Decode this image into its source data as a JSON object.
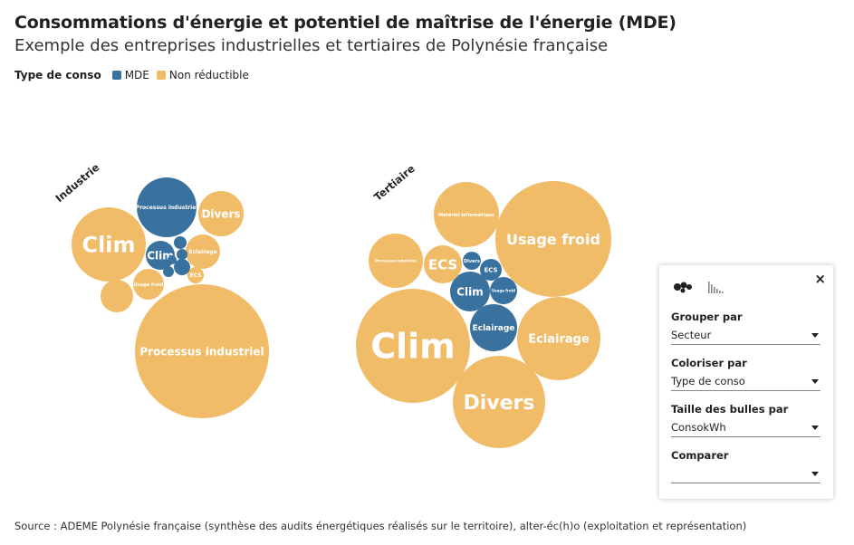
{
  "header": {
    "title": "Consommations d'énergie et potentiel de maîtrise de l'énergie (MDE)",
    "subtitle": "Exemple des entreprises industrielles et tertiaires de Polynésie française"
  },
  "legend": {
    "title": "Type de conso",
    "items": [
      {
        "label": "MDE",
        "color": "#3a729f"
      },
      {
        "label": "Non réductible",
        "color": "#f0bc68"
      }
    ]
  },
  "chart_data": {
    "type": "bubble",
    "color_by": "Type de conso",
    "size_by": "ConsokWh",
    "group_by": "Secteur",
    "groups": [
      {
        "name": "Industrie",
        "bubbles": [
          {
            "label": "Processus industriel",
            "type": "Non réductible"
          },
          {
            "label": "Clim",
            "type": "Non réductible"
          },
          {
            "label": "Processus industriel",
            "type": "MDE"
          },
          {
            "label": "Divers",
            "type": "Non réductible"
          },
          {
            "label": "Clim",
            "type": "MDE"
          },
          {
            "label": "Eclairage",
            "type": "Non réductible"
          },
          {
            "label": "Usage froid",
            "type": "Non réductible"
          },
          {
            "label": "",
            "type": "Non réductible"
          },
          {
            "label": "ECS",
            "type": "Non réductible"
          },
          {
            "label": "",
            "type": "MDE"
          },
          {
            "label": "",
            "type": "MDE"
          },
          {
            "label": "",
            "type": "MDE"
          },
          {
            "label": "",
            "type": "MDE"
          },
          {
            "label": "",
            "type": "MDE"
          }
        ]
      },
      {
        "name": "Tertiaire",
        "bubbles": [
          {
            "label": "Clim",
            "type": "Non réductible"
          },
          {
            "label": "Usage froid",
            "type": "Non réductible"
          },
          {
            "label": "Divers",
            "type": "Non réductible"
          },
          {
            "label": "Eclairage",
            "type": "Non réductible"
          },
          {
            "label": "Matériel informatique",
            "type": "Non réductible"
          },
          {
            "label": "Processus industriel",
            "type": "Non réductible"
          },
          {
            "label": "Eclairage",
            "type": "MDE"
          },
          {
            "label": "Clim",
            "type": "MDE"
          },
          {
            "label": "ECS",
            "type": "Non réductible"
          },
          {
            "label": "Usage froid",
            "type": "MDE"
          },
          {
            "label": "ECS",
            "type": "MDE"
          },
          {
            "label": "Divers",
            "type": "MDE"
          }
        ]
      }
    ]
  },
  "source": "Source : ADEME Polynésie française (synthèse des audits énergétiques réalisés sur le territoire), alter-éc(h)o (exploitation et représentation)",
  "settings_panel": {
    "close_label": "×",
    "fields": [
      {
        "label": "Grouper par",
        "value": "Secteur"
      },
      {
        "label": "Coloriser par",
        "value": "Type de conso"
      },
      {
        "label": "Taille des bulles par",
        "value": "ConsokWh"
      },
      {
        "label": "Comparer",
        "value": ""
      }
    ]
  }
}
